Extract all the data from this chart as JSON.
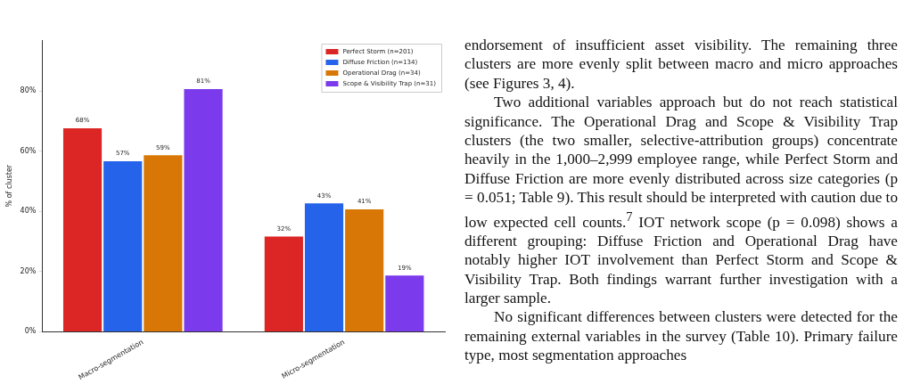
{
  "chart_data": {
    "type": "bar",
    "ylabel": "% of cluster",
    "categories": [
      "Macro-segmentation",
      "Micro-segmentation"
    ],
    "series": [
      {
        "name": "Perfect Storm (n=201)",
        "color": "#dc2626",
        "values": [
          68,
          32
        ],
        "value_labels": [
          "68%",
          "32%"
        ]
      },
      {
        "name": "Diffuse Friction (n=134)",
        "color": "#2563eb",
        "values": [
          57,
          43
        ],
        "value_labels": [
          "57%",
          "43%"
        ]
      },
      {
        "name": "Operational Drag (n=34)",
        "color": "#d97706",
        "values": [
          59,
          41
        ],
        "value_labels": [
          "59%",
          "41%"
        ]
      },
      {
        "name": "Scope & Visibility Trap (n=31)",
        "color": "#7c3aed",
        "values": [
          81,
          19
        ],
        "value_labels": [
          "81%",
          "19%"
        ]
      }
    ],
    "ylim": [
      0,
      97
    ],
    "yticks": [
      {
        "value": 0,
        "label": "0%"
      },
      {
        "value": 20,
        "label": "20%"
      },
      {
        "value": 40,
        "label": "40%"
      },
      {
        "value": 60,
        "label": "60%"
      },
      {
        "value": 80,
        "label": "80%"
      }
    ],
    "grid": false,
    "legend": "top right",
    "annotations": [
      "endorsement of insufficient asset visibility. The remaining three clusters are more evenly split between macro and micro approaches (see Figures 3, 4).",
      "Two additional variables approach but do not reach statistical significance. The Operational Drag and Scope & Visibility Trap clusters (the two smaller, selective-attribution groups) concentrate heavily in the 1,000–2,999 employee range, while Perfect Storm and Diffuse Friction are more evenly distributed across size categories (p = 0.051; Table 9). This result should be interpreted with caution due to low expected cell counts.$^{7}$ IOT network scope (p = 0.098) shows a different grouping: Diffuse Friction and Operational Drag have notably higher IOT involvement than Perfect Storm and Scope & Visibility Trap. Both findings warrant further investigation with a larger sample.",
      "No significant differences between clusters were detected for the remaining external variables in the survey (Table 10). Primary failure type, most segmentation approaches"
    ]
  }
}
